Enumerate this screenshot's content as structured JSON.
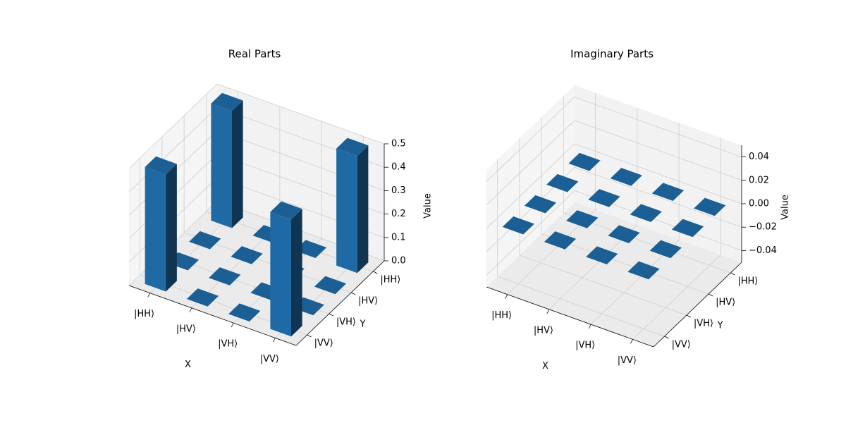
{
  "chart_data": [
    {
      "type": "bar3d",
      "title": "Real Parts",
      "xlabel": "X",
      "ylabel": "Y",
      "zlabel": "Value",
      "x_categories": [
        "|HH⟩",
        "|HV⟩",
        "|VH⟩",
        "|VV⟩"
      ],
      "y_categories": [
        "|HH⟩",
        "|HV⟩",
        "|VH⟩",
        "|VV⟩"
      ],
      "values": [
        [
          0.5,
          0,
          0,
          0.5
        ],
        [
          0,
          0,
          0,
          0
        ],
        [
          0,
          0,
          0,
          0
        ],
        [
          0.5,
          0,
          0,
          0.5
        ]
      ],
      "color": "#1f6aa5",
      "zlim": [
        0,
        0.5
      ],
      "zticks": [
        {
          "value": 0,
          "label": "0.0"
        },
        0.1,
        0.2,
        0.3,
        0.4,
        0.5
      ]
    },
    {
      "type": "bar3d",
      "title": "Imaginary Parts",
      "xlabel": "X",
      "ylabel": "Y",
      "zlabel": "Value",
      "x_categories": [
        "|HH⟩",
        "|HV⟩",
        "|VH⟩",
        "|VV⟩"
      ],
      "y_categories": [
        "|HH⟩",
        "|HV⟩",
        "|VH⟩",
        "|VV⟩"
      ],
      "values": [
        [
          0,
          0,
          0,
          0
        ],
        [
          0,
          0,
          0,
          0
        ],
        [
          0,
          0,
          0,
          0
        ],
        [
          0,
          0,
          0,
          0
        ]
      ],
      "color": "#1f6aa5",
      "zlim": [
        -0.05,
        0.05
      ],
      "zticks": [
        {
          "value": -0.04,
          "label": "−0.04"
        },
        {
          "value": -0.02,
          "label": "−0.02"
        },
        {
          "value": 0,
          "label": "0.00"
        },
        0.02,
        0.04
      ]
    }
  ]
}
